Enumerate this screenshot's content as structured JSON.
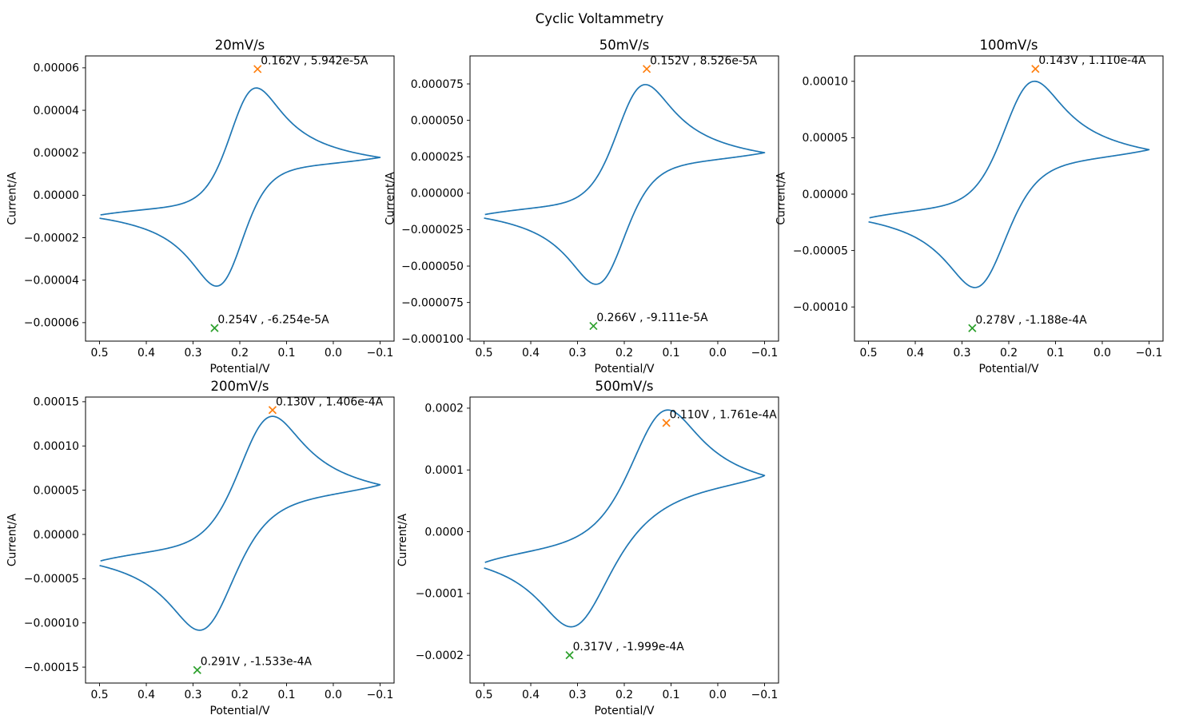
{
  "figure": {
    "title": "Cyclic Voltammetry",
    "background": "#ffffff",
    "colors": {
      "curve": "#1f77b4",
      "anodic_marker": "#ff7f0e",
      "cathodic_marker": "#2ca02c",
      "text": "#000000"
    }
  },
  "axes_common": {
    "xlabel": "Potential/V",
    "ylabel": "Current/A",
    "x_inverted": true,
    "xlim": [
      0.53,
      -0.13
    ],
    "xticks": [
      {
        "v": 0.5,
        "label": "0.5"
      },
      {
        "v": 0.4,
        "label": "0.4"
      },
      {
        "v": 0.3,
        "label": "0.3"
      },
      {
        "v": 0.2,
        "label": "0.2"
      },
      {
        "v": 0.1,
        "label": "0.1"
      },
      {
        "v": 0.0,
        "label": "0.0"
      },
      {
        "v": -0.1,
        "label": "−0.1"
      }
    ]
  },
  "chart_data": [
    {
      "type": "line",
      "title": "20mV/s",
      "scan_rate_mV_per_s": 20,
      "xlabel": "Potential/V",
      "ylabel": "Current/A",
      "xlim": [
        0.53,
        -0.13
      ],
      "ylim": [
        -6.87e-05,
        6.56e-05
      ],
      "grid": false,
      "yticks": [
        {
          "v": 6e-05,
          "label": "0.00006"
        },
        {
          "v": 4e-05,
          "label": "0.00004"
        },
        {
          "v": 2e-05,
          "label": "0.00002"
        },
        {
          "v": 0.0,
          "label": "0.00000"
        },
        {
          "v": -2e-05,
          "label": "−0.00002"
        },
        {
          "v": -4e-05,
          "label": "−0.00004"
        },
        {
          "v": -6e-05,
          "label": "−0.00006"
        }
      ],
      "anodic_peak": {
        "potential_V": 0.162,
        "current_A": 5.942e-05,
        "label": "0.162V , 5.942e-5A",
        "marker": "x"
      },
      "cathodic_peak": {
        "potential_V": 0.254,
        "current_A": -6.254e-05,
        "label": "0.254V , -6.254e-5A",
        "marker": "x"
      },
      "curve": {
        "model": "quasi-reversible-CV",
        "E_start_V": 0.5,
        "E_switch_V": -0.1,
        "E0_V": 0.208,
        "k0_cm_s": 0.0037,
        "alpha": 0.5,
        "D_cm2_s": 1e-05,
        "drawn_peak_current_A": 5.05e-05
      }
    },
    {
      "type": "line",
      "title": "50mV/s",
      "scan_rate_mV_per_s": 50,
      "xlabel": "Potential/V",
      "ylabel": "Current/A",
      "xlim": [
        0.53,
        -0.13
      ],
      "ylim": [
        -0.0001015,
        9.42e-05
      ],
      "grid": false,
      "yticks": [
        {
          "v": 7.5e-05,
          "label": "0.000075"
        },
        {
          "v": 5e-05,
          "label": "0.000050"
        },
        {
          "v": 2.5e-05,
          "label": "0.000025"
        },
        {
          "v": 0.0,
          "label": "0.000000"
        },
        {
          "v": -2.5e-05,
          "label": "−0.000025"
        },
        {
          "v": -5e-05,
          "label": "−0.000050"
        },
        {
          "v": -7.5e-05,
          "label": "−0.000075"
        },
        {
          "v": -0.0001,
          "label": "−0.000100"
        }
      ],
      "anodic_peak": {
        "potential_V": 0.152,
        "current_A": 8.526e-05,
        "label": "0.152V , 8.526e-5A",
        "marker": "x"
      },
      "cathodic_peak": {
        "potential_V": 0.266,
        "current_A": -9.111e-05,
        "label": "0.266V , -9.111e-5A",
        "marker": "x"
      },
      "curve": {
        "model": "quasi-reversible-CV",
        "E_start_V": 0.5,
        "E_switch_V": -0.1,
        "E0_V": 0.209,
        "k0_cm_s": 0.0035,
        "alpha": 0.5,
        "D_cm2_s": 1e-05,
        "drawn_peak_current_A": 7.45e-05
      }
    },
    {
      "type": "line",
      "title": "100mV/s",
      "scan_rate_mV_per_s": 100,
      "xlabel": "Potential/V",
      "ylabel": "Current/A",
      "xlim": [
        0.53,
        -0.13
      ],
      "ylim": [
        -0.0001303,
        0.0001225
      ],
      "grid": false,
      "yticks": [
        {
          "v": 0.0001,
          "label": "0.00010"
        },
        {
          "v": 5e-05,
          "label": "0.00005"
        },
        {
          "v": 0.0,
          "label": "0.00000"
        },
        {
          "v": -5e-05,
          "label": "−0.00005"
        },
        {
          "v": -0.0001,
          "label": "−0.00010"
        }
      ],
      "anodic_peak": {
        "potential_V": 0.143,
        "current_A": 0.000111,
        "label": "0.143V , 1.110e-4A",
        "marker": "x"
      },
      "cathodic_peak": {
        "potential_V": 0.278,
        "current_A": -0.0001188,
        "label": "0.278V , -1.188e-4A",
        "marker": "x"
      },
      "curve": {
        "model": "quasi-reversible-CV",
        "E_start_V": 0.5,
        "E_switch_V": -0.1,
        "E0_V": 0.2105,
        "k0_cm_s": 0.0033,
        "alpha": 0.5,
        "D_cm2_s": 1e-05,
        "drawn_peak_current_A": 0.0001
      }
    },
    {
      "type": "line",
      "title": "200mV/s",
      "scan_rate_mV_per_s": 200,
      "xlabel": "Potential/V",
      "ylabel": "Current/A",
      "xlim": [
        0.53,
        -0.13
      ],
      "ylim": [
        -0.000168,
        0.0001553
      ],
      "grid": false,
      "yticks": [
        {
          "v": 0.00015,
          "label": "0.00015"
        },
        {
          "v": 0.0001,
          "label": "0.00010"
        },
        {
          "v": 5e-05,
          "label": "0.00005"
        },
        {
          "v": 0.0,
          "label": "0.00000"
        },
        {
          "v": -5e-05,
          "label": "−0.00005"
        },
        {
          "v": -0.0001,
          "label": "−0.00010"
        },
        {
          "v": -0.00015,
          "label": "−0.00015"
        }
      ],
      "anodic_peak": {
        "potential_V": 0.13,
        "current_A": 0.0001406,
        "label": "0.130V , 1.406e-4A",
        "marker": "x"
      },
      "cathodic_peak": {
        "potential_V": 0.291,
        "current_A": -0.0001533,
        "label": "0.291V , -1.533e-4A",
        "marker": "x"
      },
      "curve": {
        "model": "quasi-reversible-CV",
        "E_start_V": 0.5,
        "E_switch_V": -0.1,
        "E0_V": 0.2105,
        "k0_cm_s": 0.0031,
        "alpha": 0.5,
        "D_cm2_s": 1e-05,
        "drawn_peak_current_A": 0.0001335
      }
    },
    {
      "type": "line",
      "title": "500mV/s",
      "scan_rate_mV_per_s": 500,
      "xlabel": "Potential/V",
      "ylabel": "Current/A",
      "xlim": [
        0.53,
        -0.13
      ],
      "ylim": [
        -0.000245,
        0.000218
      ],
      "grid": false,
      "yticks": [
        {
          "v": 0.0002,
          "label": "0.0002"
        },
        {
          "v": 0.0001,
          "label": "0.0001"
        },
        {
          "v": 0.0,
          "label": "0.0000"
        },
        {
          "v": -0.0001,
          "label": "−0.0001"
        },
        {
          "v": -0.0002,
          "label": "−0.0002"
        }
      ],
      "anodic_peak": {
        "potential_V": 0.11,
        "current_A": 0.0001761,
        "label": "0.110V , 1.761e-4A",
        "marker": "x"
      },
      "cathodic_peak": {
        "potential_V": 0.317,
        "current_A": -0.0001999,
        "label": "0.317V , -1.999e-4A",
        "marker": "x"
      },
      "curve": {
        "model": "quasi-reversible-CV",
        "E_start_V": 0.5,
        "E_switch_V": -0.1,
        "E0_V": 0.2135,
        "k0_cm_s": 0.0027,
        "alpha": 0.5,
        "D_cm2_s": 1e-05,
        "drawn_peak_current_A": 0.000197
      }
    }
  ]
}
